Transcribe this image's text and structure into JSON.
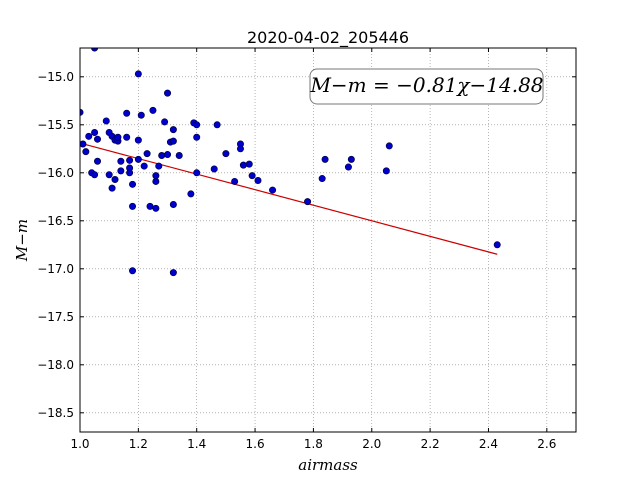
{
  "chart_data": {
    "type": "scatter",
    "title": "2020-04-02_205446",
    "xlabel": "airmass",
    "ylabel": "M−m",
    "xlim": [
      1.0,
      2.7
    ],
    "ylim": [
      -18.7,
      -14.7
    ],
    "y_inverted": true,
    "grid": true,
    "x_ticks": [
      "1.0",
      "1.2",
      "1.4",
      "1.6",
      "1.8",
      "2.0",
      "2.2",
      "2.4",
      "2.6"
    ],
    "y_ticks": [
      "−15.0",
      "−15.5",
      "−16.0",
      "−16.5",
      "−17.0",
      "−17.5",
      "−18.0",
      "−18.5"
    ],
    "annotation": "M−m = −0.81χ−14.88",
    "fit": {
      "slope": -0.81,
      "intercept": -14.88,
      "x_range": [
        1.0,
        2.43
      ],
      "color": "#cc0000"
    },
    "point_color": "#0000cc",
    "points": [
      [
        1.0,
        -15.37
      ],
      [
        1.01,
        -15.7
      ],
      [
        1.02,
        -15.78
      ],
      [
        1.03,
        -15.62
      ],
      [
        1.04,
        -16.0
      ],
      [
        1.05,
        -16.02
      ],
      [
        1.05,
        -15.58
      ],
      [
        1.06,
        -15.65
      ],
      [
        1.06,
        -15.88
      ],
      [
        1.05,
        -14.7
      ],
      [
        1.09,
        -15.46
      ],
      [
        1.1,
        -15.58
      ],
      [
        1.1,
        -16.02
      ],
      [
        1.11,
        -15.62
      ],
      [
        1.11,
        -16.16
      ],
      [
        1.12,
        -16.07
      ],
      [
        1.12,
        -15.66
      ],
      [
        1.13,
        -15.67
      ],
      [
        1.13,
        -15.63
      ],
      [
        1.14,
        -15.88
      ],
      [
        1.14,
        -15.98
      ],
      [
        1.16,
        -15.38
      ],
      [
        1.16,
        -15.63
      ],
      [
        1.17,
        -15.95
      ],
      [
        1.17,
        -16.0
      ],
      [
        1.17,
        -15.87
      ],
      [
        1.18,
        -16.12
      ],
      [
        1.18,
        -16.35
      ],
      [
        1.18,
        -17.02
      ],
      [
        1.2,
        -15.66
      ],
      [
        1.2,
        -14.97
      ],
      [
        1.2,
        -15.86
      ],
      [
        1.21,
        -15.4
      ],
      [
        1.22,
        -15.93
      ],
      [
        1.23,
        -15.8
      ],
      [
        1.24,
        -16.35
      ],
      [
        1.25,
        -15.35
      ],
      [
        1.26,
        -16.37
      ],
      [
        1.26,
        -16.03
      ],
      [
        1.26,
        -16.09
      ],
      [
        1.27,
        -15.93
      ],
      [
        1.28,
        -15.82
      ],
      [
        1.29,
        -15.47
      ],
      [
        1.3,
        -15.17
      ],
      [
        1.3,
        -15.81
      ],
      [
        1.31,
        -15.68
      ],
      [
        1.32,
        -15.55
      ],
      [
        1.32,
        -15.67
      ],
      [
        1.32,
        -16.33
      ],
      [
        1.32,
        -17.04
      ],
      [
        1.34,
        -15.82
      ],
      [
        1.38,
        -16.22
      ],
      [
        1.39,
        -15.48
      ],
      [
        1.4,
        -15.5
      ],
      [
        1.4,
        -15.63
      ],
      [
        1.4,
        -16.0
      ],
      [
        1.46,
        -15.96
      ],
      [
        1.47,
        -15.5
      ],
      [
        1.5,
        -15.8
      ],
      [
        1.53,
        -16.09
      ],
      [
        1.55,
        -15.7
      ],
      [
        1.55,
        -15.75
      ],
      [
        1.56,
        -15.92
      ],
      [
        1.58,
        -15.91
      ],
      [
        1.59,
        -16.03
      ],
      [
        1.61,
        -16.08
      ],
      [
        1.66,
        -16.18
      ],
      [
        1.78,
        -16.3
      ],
      [
        1.83,
        -16.06
      ],
      [
        1.84,
        -15.86
      ],
      [
        1.92,
        -15.94
      ],
      [
        1.93,
        -15.86
      ],
      [
        2.05,
        -15.98
      ],
      [
        2.06,
        -15.72
      ],
      [
        2.43,
        -16.75
      ]
    ]
  }
}
